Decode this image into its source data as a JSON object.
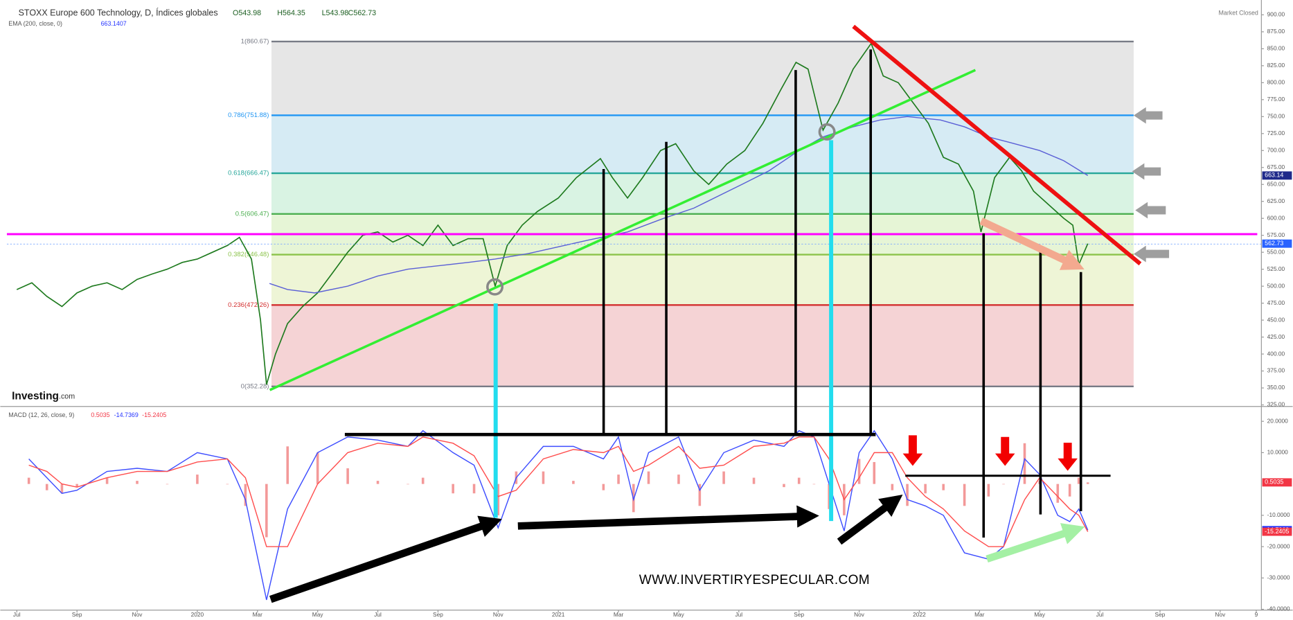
{
  "header": {
    "ohlc": [
      "O543.98",
      "H564.35",
      "L543.98",
      "C562.73"
    ],
    "market_status": "Market Closed"
  },
  "brand": {
    "name": "Investing",
    "suffix": ".com"
  },
  "watermark": "WWW.INVERTIRYESPECULAR.COM",
  "chart_data": [
    {
      "type": "line",
      "title": "STOXX Europe 600 Technology, D, Índices globales",
      "xlim": [
        -0.33,
        41.37
      ],
      "ylim": [
        322.7,
        915.8
      ],
      "yticks": [
        {
          "value": 325,
          "label": "325.00"
        },
        {
          "value": 350,
          "label": "350.00"
        },
        {
          "value": 375,
          "label": "375.00"
        },
        {
          "value": 400,
          "label": "400.00"
        },
        {
          "value": 425,
          "label": "425.00"
        },
        {
          "value": 450,
          "label": "450.00"
        },
        {
          "value": 475,
          "label": "475.00"
        },
        {
          "value": 500,
          "label": "500.00"
        },
        {
          "value": 525,
          "label": "525.00"
        },
        {
          "value": 550,
          "label": "550.00"
        },
        {
          "value": 575,
          "label": "575.00"
        },
        {
          "value": 600,
          "label": "600.00"
        },
        {
          "value": 625,
          "label": "625.00"
        },
        {
          "value": 650,
          "label": "650.00"
        },
        {
          "value": 675,
          "label": "675.00"
        },
        {
          "value": 700,
          "label": "700.00"
        },
        {
          "value": 725,
          "label": "725.00"
        },
        {
          "value": 750,
          "label": "750.00"
        },
        {
          "value": 775,
          "label": "775.00"
        },
        {
          "value": 800,
          "label": "800.00"
        },
        {
          "value": 825,
          "label": "825.00"
        },
        {
          "value": 850,
          "label": "850.00"
        },
        {
          "value": 875,
          "label": "875.00"
        },
        {
          "value": 900,
          "label": "900.00"
        }
      ],
      "fib_levels": [
        {
          "label": "0(352.28)",
          "value": 352.28,
          "color": "#787b86",
          "zone_color": "#f5d3d5"
        },
        {
          "label": "0.236(472.26)",
          "value": 472.26,
          "color": "#d32f2f",
          "zone_color": "#eef5d6"
        },
        {
          "label": "0.382(546.48)",
          "value": 546.48,
          "color": "#8bc34a",
          "zone_color": "#e6f5d6"
        },
        {
          "label": "0.5(606.47)",
          "value": 606.47,
          "color": "#4caf50",
          "zone_color": "#d9f3e3"
        },
        {
          "label": "0.618(666.47)",
          "value": 666.47,
          "color": "#26a69a",
          "zone_color": "#d6ebf4"
        },
        {
          "label": "0.786(751.88)",
          "value": 751.88,
          "color": "#2196f3",
          "zone_color": "#e6e6e6"
        },
        {
          "label": "1(860.67)",
          "value": 860.67,
          "color": "#787b86"
        }
      ],
      "series": [
        {
          "color": "#1e7a1e",
          "label_color": "#2962ff",
          "x": [
            0,
            0.5,
            1,
            1.5,
            2,
            2.5,
            3,
            3.5,
            4,
            4.5,
            5,
            5.5,
            6,
            6.5,
            7,
            7.4,
            7.8,
            8.1,
            8.3,
            8.6,
            9,
            9.5,
            10,
            10.5,
            11,
            11.5,
            12,
            12.5,
            13,
            13.5,
            14,
            14.5,
            15,
            15.5,
            15.9,
            16.3,
            16.8,
            17.3,
            18,
            18.6,
            19.4,
            19.8,
            20.3,
            20.8,
            21.4,
            21.9,
            22.5,
            23,
            23.6,
            24.2,
            24.8,
            25.4,
            25.9,
            26.3,
            26.8,
            27.3,
            27.8,
            28.4,
            28.8,
            29.3,
            29.8,
            30.3,
            30.8,
            31.3,
            31.8,
            32.05,
            32.5,
            33,
            33.4,
            33.8,
            34.3,
            34.8,
            35.1,
            35.3,
            35.6
          ],
          "values": [
            495,
            505,
            485,
            470,
            490,
            500,
            505,
            495,
            510,
            518,
            525,
            535,
            540,
            550,
            560,
            572,
            540,
            450,
            355,
            400,
            445,
            470,
            490,
            520,
            550,
            575,
            580,
            565,
            575,
            560,
            590,
            560,
            570,
            570,
            500,
            560,
            590,
            610,
            630,
            660,
            688,
            660,
            630,
            660,
            700,
            710,
            670,
            650,
            680,
            700,
            740,
            790,
            830,
            820,
            730,
            770,
            820,
            858,
            810,
            800,
            770,
            740,
            690,
            680,
            640,
            580,
            660,
            690,
            670,
            640,
            620,
            600,
            590,
            532,
            562.73
          ]
        },
        {
          "name": "EMA (200, close, 0)",
          "legend_value": 663.1407,
          "color": "#5a5fd6",
          "label_color": "#1f2a8a",
          "x": [
            8.4,
            9,
            9.9,
            11,
            12,
            13,
            14,
            15,
            15.9,
            17,
            18,
            19,
            20.3,
            21.5,
            22.5,
            24.1,
            25,
            26,
            26.8,
            27.8,
            28.7,
            29.6,
            30.7,
            31.5,
            32.3,
            33,
            34,
            34.8,
            35.6
          ],
          "values": [
            504,
            495,
            490,
            500,
            515,
            525,
            530,
            535,
            540,
            548,
            558,
            568,
            580,
            600,
            615,
            650,
            670,
            700,
            720,
            735,
            745,
            750,
            745,
            735,
            720,
            712,
            700,
            685,
            663.14
          ]
        }
      ]
    },
    {
      "type": "line",
      "title": "MACD (12, 26, close, 9)",
      "xlim": [
        -0.33,
        41.37
      ],
      "ylim": [
        -40.26,
        23.95
      ],
      "yticks": [
        {
          "value": 20,
          "label": "20.0000"
        },
        {
          "value": 10,
          "label": "10.0000"
        },
        {
          "value": -10,
          "label": "-10.0000"
        },
        {
          "value": -20,
          "label": "-20.0000"
        },
        {
          "value": -30,
          "label": "-30.0000"
        },
        {
          "value": -40,
          "label": "-40.0000"
        }
      ],
      "xticks": [
        {
          "value": 0,
          "label": "Jul"
        },
        {
          "value": 2,
          "label": "Sep"
        },
        {
          "value": 4,
          "label": "Nov"
        },
        {
          "value": 6,
          "label": "2020"
        },
        {
          "value": 8,
          "label": "Mar"
        },
        {
          "value": 10,
          "label": "May"
        },
        {
          "value": 12,
          "label": "Jul"
        },
        {
          "value": 14,
          "label": "Sep"
        },
        {
          "value": 16,
          "label": "Nov"
        },
        {
          "value": 18,
          "label": "2021"
        },
        {
          "value": 20,
          "label": "Mar"
        },
        {
          "value": 22,
          "label": "May"
        },
        {
          "value": 24,
          "label": "Jul"
        },
        {
          "value": 26,
          "label": "Sep"
        },
        {
          "value": 28,
          "label": "Nov"
        },
        {
          "value": 30,
          "label": "2022"
        },
        {
          "value": 32,
          "label": "Mar"
        },
        {
          "value": 34,
          "label": "May"
        },
        {
          "value": 36,
          "label": "Jul"
        },
        {
          "value": 38,
          "label": "Sep"
        },
        {
          "value": 40,
          "label": "Nov"
        },
        {
          "value": 41.2,
          "label": "9"
        }
      ],
      "series": [
        {
          "style": "bar",
          "color": "#f08080",
          "label_color": "#f23645",
          "x": [
            0.4,
            1,
            1.5,
            2,
            3,
            4,
            5,
            6,
            7,
            7.6,
            8.3,
            9,
            10,
            11,
            12,
            13,
            13.5,
            14.5,
            15.2,
            16,
            16.6,
            17.5,
            18.5,
            19.5,
            20,
            20.5,
            21,
            22,
            22.7,
            23.5,
            24.5,
            25.5,
            26,
            26.5,
            27,
            27.5,
            28,
            28.5,
            29.1,
            29.6,
            30.2,
            30.8,
            31.5,
            32.3,
            32.8,
            33.5,
            34,
            34.6,
            35,
            35.3,
            35.6
          ],
          "values": [
            2,
            -2,
            -3,
            -1,
            2,
            1,
            0,
            3,
            0,
            -7,
            -17,
            12,
            10,
            5,
            1,
            0,
            2,
            -3,
            -3,
            -10,
            4,
            4,
            1,
            -2,
            3,
            -9,
            4,
            3,
            -7,
            4,
            2,
            -1,
            2,
            0,
            -8,
            -10,
            8,
            7,
            -2,
            -7,
            -3,
            -2,
            -7,
            -4,
            0,
            13,
            1,
            -6,
            -4,
            2,
            0.5035
          ]
        },
        {
          "style": "line",
          "color": "#3d4dff",
          "label_color": "#2433ff",
          "x": [
            0.4,
            1,
            1.5,
            2,
            3,
            4,
            5,
            6,
            7,
            7.6,
            8.3,
            9,
            10,
            11,
            12,
            13,
            13.5,
            14.5,
            15.2,
            16,
            16.6,
            17.5,
            18.5,
            19.5,
            20,
            20.5,
            21,
            22,
            22.7,
            23.5,
            24.5,
            25.5,
            26,
            26.5,
            27,
            27.5,
            28,
            28.5,
            29.1,
            29.6,
            30.2,
            30.8,
            31.5,
            32.3,
            32.8,
            33.5,
            34,
            34.6,
            35,
            35.3,
            35.6
          ],
          "values": [
            8,
            2,
            -3,
            -2,
            4,
            5,
            4,
            10,
            8,
            -5,
            -37,
            -8,
            10,
            15,
            14,
            12,
            17,
            10,
            6,
            -14,
            2,
            12,
            12,
            8,
            15,
            -5,
            10,
            15,
            -2,
            10,
            14,
            12,
            17,
            15,
            0,
            -15,
            10,
            17,
            8,
            -5,
            -7,
            -10,
            -22,
            -24,
            -20,
            8,
            3,
            -10,
            -12,
            -8,
            -14.7369
          ]
        },
        {
          "style": "line",
          "color": "#ff4d4d",
          "label_color": "#f23645",
          "x": [
            0.4,
            1,
            1.5,
            2,
            3,
            4,
            5,
            6,
            7,
            7.6,
            8.3,
            9,
            10,
            11,
            12,
            13,
            13.5,
            14.5,
            15.2,
            16,
            16.6,
            17.5,
            18.5,
            19.5,
            20,
            20.5,
            21,
            22,
            22.7,
            23.5,
            24.5,
            25.5,
            26,
            26.5,
            27,
            27.5,
            28,
            28.5,
            29.1,
            29.6,
            30.2,
            30.8,
            31.5,
            32.3,
            32.8,
            33.5,
            34,
            34.6,
            35,
            35.3,
            35.6
          ],
          "values": [
            6,
            4,
            0,
            -1,
            2,
            4,
            4,
            7,
            8,
            2,
            -20,
            -20,
            0,
            10,
            13,
            12,
            15,
            13,
            9,
            -4,
            -2,
            8,
            11,
            10,
            12,
            4,
            6,
            12,
            5,
            6,
            12,
            13,
            15,
            15,
            8,
            -5,
            2,
            10,
            10,
            2,
            -4,
            -8,
            -15,
            -20,
            -20,
            -5,
            2,
            -4,
            -8,
            -10,
            -15.2405
          ]
        }
      ]
    }
  ]
}
